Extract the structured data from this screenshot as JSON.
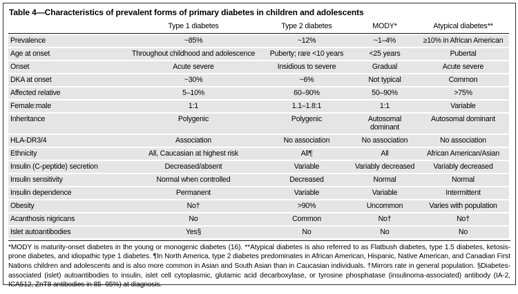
{
  "title": "Table 4—Characteristics of prevalent forms of primary diabetes in children and adolescents",
  "table": {
    "column_headers": [
      "",
      "Type 1 diabetes",
      "Type 2 diabetes",
      "MODY*",
      "Atypical diabetes**"
    ],
    "rows": [
      {
        "label": "Prevalence",
        "values": [
          "~85%",
          "~12%",
          "~1–4%",
          "≥10% in African American"
        ]
      },
      {
        "label": "Age at onset",
        "values": [
          "Throughout childhood and adolescence",
          "Puberty; rare <10 years",
          "<25 years",
          "Pubertal"
        ]
      },
      {
        "label": "Onset",
        "values": [
          "Acute severe",
          "Insidious to severe",
          "Gradual",
          "Acute severe"
        ]
      },
      {
        "label": "DKA at onset",
        "values": [
          "~30%",
          "~6%",
          "Not typical",
          "Common"
        ]
      },
      {
        "label": "Affected relative",
        "values": [
          "5–10%",
          "60–90%",
          "50–90%",
          ">75%"
        ]
      },
      {
        "label": "Female:male",
        "values": [
          "1:1",
          "1.1–1.8:1",
          "1:1",
          "Variable"
        ]
      },
      {
        "label": "Inheritance",
        "values": [
          "Polygenic",
          "Polygenic",
          "Autosomal\ndominant",
          "Autosomal dominant"
        ]
      },
      {
        "label": "HLA-DR3/4",
        "values": [
          "Association",
          "No association",
          "No association",
          "No association"
        ]
      },
      {
        "label": "Ethnicity",
        "values": [
          "All, Caucasian at highest risk",
          "All¶",
          "All",
          "African American/Asian"
        ]
      },
      {
        "label": "Insulin (C-peptide) secretion",
        "values": [
          "Decreased/absent",
          "Variable",
          "Variably decreased",
          "Variably decreased"
        ]
      },
      {
        "label": "Insulin sensitivity",
        "values": [
          "Normal when controlled",
          "Decreased",
          "Normal",
          "Normal"
        ]
      },
      {
        "label": "Insulin dependence",
        "values": [
          "Permanent",
          "Variable",
          "Variable",
          "Intermittent"
        ]
      },
      {
        "label": "Obesity",
        "values": [
          "No†",
          ">90%",
          "Uncommon",
          "Varies with population"
        ]
      },
      {
        "label": "Acanthosis nigricans",
        "values": [
          "No",
          "Common",
          "No†",
          "No†"
        ]
      },
      {
        "label": "Islet autoantibodies",
        "values": [
          "Yes§",
          "No",
          "No",
          "No"
        ]
      }
    ]
  },
  "footnote": "*MODY is maturity-onset diabetes in the young or monogenic diabetes (16). **Atypical diabetes is also referred to as Flatbush diabetes, type 1.5 diabetes, ketosis-prone diabetes, and idiopathic type 1 diabetes. ¶In North America, type 2 diabetes predominates in African American, Hispanic, Native American, and Canadian First Nations children and adolescents and is also more common in Asian and South Asian than in Caucasian individuals. †Mirrors rate in general population. §Diabetes-associated (islet) autoantibodies to insulin, islet cell cytoplasmic, glutamic acid decarboxylase, or tyrosine phosphatase (insulinoma-associated) antibody (IA-2, ICA512, ZnT8 antibodies in 85–95%) at diagnosis.",
  "colors": {
    "row_band": "#e5e5e5",
    "outer_border": "#2b2b2b",
    "rule": "#111111",
    "text": "#000000",
    "background": "#ffffff"
  }
}
